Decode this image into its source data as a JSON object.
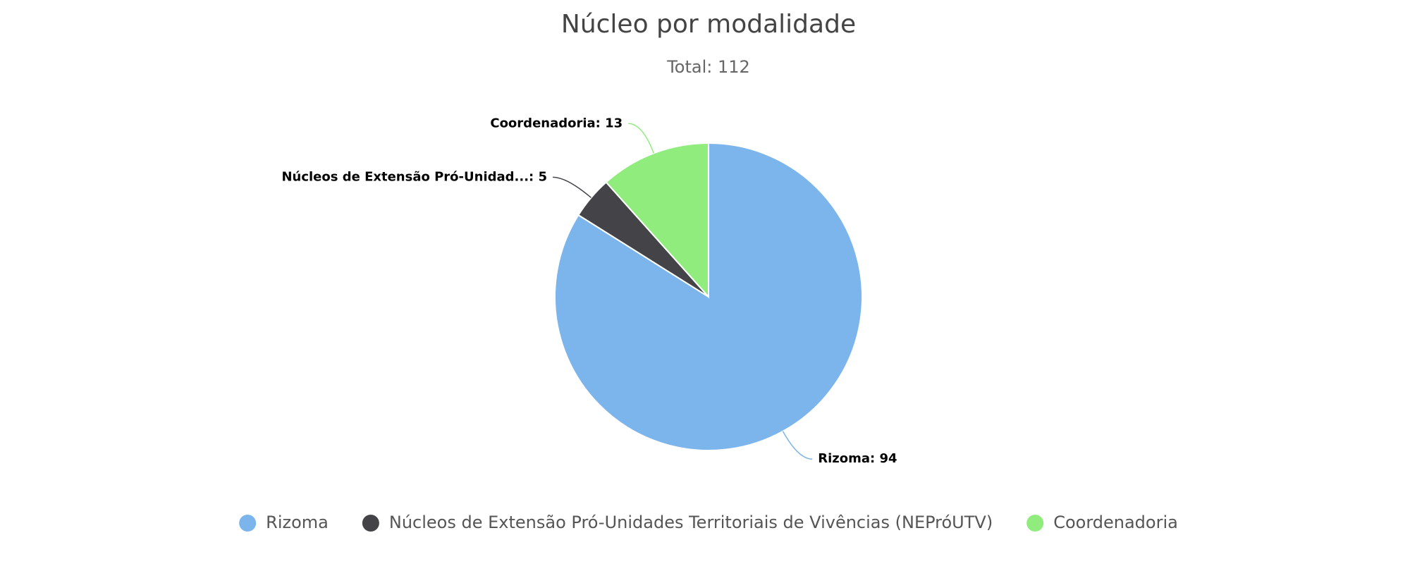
{
  "chart_data": {
    "type": "pie",
    "title": "Núcleo por modalidade",
    "subtitle": "Total: 112",
    "categories": [
      "Rizoma",
      "Núcleos de Extensão Pró-Unidades Territoriais de Vivências (NEPróUTV)",
      "Coordenadoria"
    ],
    "values": [
      94,
      5,
      13
    ],
    "value_labels": [
      "Rizoma: 94",
      "Núcleos de Extensão Pró-Unidad...: 5",
      "Coordenadoria: 13"
    ],
    "colors": [
      "#7cb5ec",
      "#434348",
      "#90ed7d"
    ]
  }
}
